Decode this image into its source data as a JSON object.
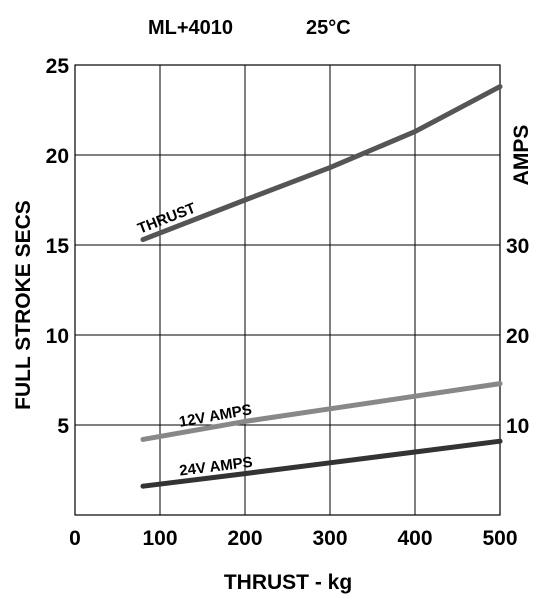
{
  "chart_data": {
    "type": "line",
    "title": "ML+4010",
    "subtitle_temp": "25",
    "subtitle_unit": "°C",
    "xlabel": "THRUST - kg",
    "ylabel": "FULL STROKE SECS",
    "y2label": "AMPS",
    "xlim": [
      0,
      500
    ],
    "ylim": [
      0,
      25
    ],
    "y2lim": [
      0,
      50
    ],
    "x_ticks": [
      "0",
      "100",
      "200",
      "300",
      "400",
      "500"
    ],
    "y_ticks": [
      "5",
      "10",
      "15",
      "20",
      "25"
    ],
    "y2_ticks": [
      "10",
      "20",
      "30"
    ],
    "grid": true,
    "series": [
      {
        "name": "THRUST",
        "color": "#555555",
        "x": [
          80,
          200,
          300,
          400,
          500
        ],
        "y": [
          15.3,
          17.5,
          19.3,
          21.3,
          23.8
        ]
      },
      {
        "name": "12V AMPS",
        "color": "#888888",
        "x": [
          80,
          200,
          300,
          400,
          500
        ],
        "y": [
          4.2,
          5.2,
          5.9,
          6.6,
          7.3
        ]
      },
      {
        "name": "24V AMPS",
        "color": "#333333",
        "x": [
          80,
          200,
          300,
          400,
          500
        ],
        "y": [
          1.6,
          2.3,
          2.9,
          3.5,
          4.1
        ]
      }
    ]
  }
}
